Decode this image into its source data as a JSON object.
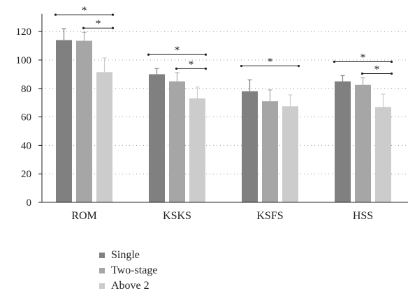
{
  "chart_data": {
    "type": "bar",
    "categories": [
      "ROM",
      "KSKS",
      "KSFS",
      "HSS"
    ],
    "series": [
      {
        "name": "Single",
        "color": "#808080",
        "values": [
          114,
          90,
          78,
          85
        ],
        "errors": [
          8,
          4,
          8,
          4
        ]
      },
      {
        "name": "Two-stage",
        "color": "#a6a6a6",
        "values": [
          113.5,
          85,
          71,
          82.5
        ],
        "errors": [
          6,
          6,
          8,
          5
        ]
      },
      {
        "name": "Above 2",
        "color": "#cccccc",
        "values": [
          91.5,
          73,
          67.5,
          67
        ],
        "errors": [
          10,
          8,
          8,
          9
        ]
      }
    ],
    "ylim": [
      0,
      130
    ],
    "yticks": [
      0,
      20,
      40,
      60,
      80,
      100,
      120
    ],
    "grid": "dotted horizontal",
    "legend": "bottom-left",
    "significance": [
      {
        "category": "ROM",
        "from": "Single",
        "to": "Above 2",
        "label": "*"
      },
      {
        "category": "ROM",
        "from": "Two-stage",
        "to": "Above 2",
        "label": "*"
      },
      {
        "category": "KSKS",
        "from": "Single",
        "to": "Above 2",
        "label": "*"
      },
      {
        "category": "KSKS",
        "from": "Two-stage",
        "to": "Above 2",
        "label": "*"
      },
      {
        "category": "KSFS",
        "from": "Single",
        "to": "Above 2",
        "label": "*"
      },
      {
        "category": "HSS",
        "from": "Single",
        "to": "Above 2",
        "label": "*"
      },
      {
        "category": "HSS",
        "from": "Two-stage",
        "to": "Above 2",
        "label": "*"
      }
    ]
  }
}
